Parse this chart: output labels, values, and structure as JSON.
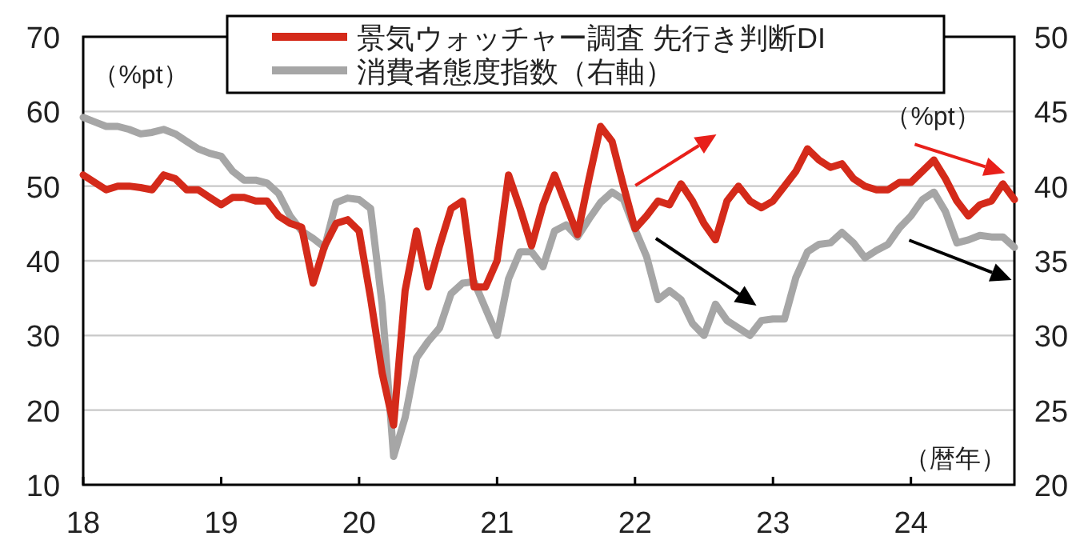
{
  "chart_data": {
    "type": "line",
    "x": [
      "2018-01",
      "2018-02",
      "2018-03",
      "2018-04",
      "2018-05",
      "2018-06",
      "2018-07",
      "2018-08",
      "2018-09",
      "2018-10",
      "2018-11",
      "2018-12",
      "2019-01",
      "2019-02",
      "2019-03",
      "2019-04",
      "2019-05",
      "2019-06",
      "2019-07",
      "2019-08",
      "2019-09",
      "2019-10",
      "2019-11",
      "2019-12",
      "2020-01",
      "2020-02",
      "2020-03",
      "2020-04",
      "2020-05",
      "2020-06",
      "2020-07",
      "2020-08",
      "2020-09",
      "2020-10",
      "2020-11",
      "2020-12",
      "2021-01",
      "2021-02",
      "2021-03",
      "2021-04",
      "2021-05",
      "2021-06",
      "2021-07",
      "2021-08",
      "2021-09",
      "2021-10",
      "2021-11",
      "2021-12",
      "2022-01",
      "2022-02",
      "2022-03",
      "2022-04",
      "2022-05",
      "2022-06",
      "2022-07",
      "2022-08",
      "2022-09",
      "2022-10",
      "2022-11",
      "2022-12",
      "2023-01",
      "2023-02",
      "2023-03",
      "2023-04",
      "2023-05",
      "2023-06",
      "2023-07",
      "2023-08",
      "2023-09",
      "2023-10",
      "2023-11",
      "2023-12",
      "2024-01",
      "2024-02",
      "2024-03",
      "2024-04",
      "2024-05",
      "2024-06",
      "2024-07",
      "2024-08",
      "2024-09",
      "2024-10"
    ],
    "series": [
      {
        "name": "景気ウォッチャー調査 先行き判断DI",
        "color": "#d42a1a",
        "values": [
          51.5,
          50.5,
          49.5,
          50,
          50,
          49.8,
          49.5,
          51.5,
          51,
          49.5,
          49.5,
          48.5,
          47.5,
          48.5,
          48.5,
          48,
          48,
          46,
          45,
          44.5,
          37,
          42,
          45,
          45.5,
          44,
          35,
          25,
          18,
          36,
          44,
          36.5,
          42,
          47,
          48,
          36.5,
          36.5,
          40,
          51.5,
          47,
          42,
          47.5,
          51.5,
          47.5,
          43.5,
          51,
          58,
          56,
          50,
          44.3,
          46,
          48,
          47.5,
          50.3,
          48,
          45,
          42.8,
          48,
          50,
          48,
          47.1,
          48,
          50,
          52,
          55,
          53.5,
          52.5,
          53,
          51,
          50,
          49.5,
          49.5,
          50.5,
          50.5,
          52,
          53.5,
          51,
          48,
          46,
          47.5,
          48,
          50.3,
          48.2
        ]
      },
      {
        "name": "消費者態度指数（右軸）",
        "color": "#a6a6a6",
        "axis": "y2",
        "values": [
          44.6,
          44.3,
          44,
          44,
          43.8,
          43.5,
          43.6,
          43.8,
          43.5,
          43,
          42.5,
          42.2,
          42,
          41,
          40.4,
          40.4,
          40.2,
          39.5,
          38,
          37,
          36.5,
          35.9,
          38.9,
          39.2,
          39.1,
          38.5,
          32.1,
          21.9,
          24.5,
          28.5,
          29.6,
          30.5,
          32.8,
          33.5,
          33.6,
          31.8,
          30,
          33.8,
          35.6,
          35.6,
          34.6,
          37,
          37.4,
          36.6,
          37.8,
          38.9,
          39.6,
          39.1,
          37.1,
          35.3,
          32.4,
          33,
          32.4,
          30.8,
          30,
          32.1,
          31,
          30.5,
          30,
          31,
          31.1,
          31.1,
          33.9,
          35.6,
          36.1,
          36.2,
          36.9,
          36.2,
          35.2,
          35.7,
          36.1,
          37.2,
          38,
          39.1,
          39.6,
          38.3,
          36.2,
          36.4,
          36.7,
          36.6,
          36.6,
          35.9
        ]
      }
    ],
    "xlim": [
      "2018-01",
      "2024-10"
    ],
    "xticks": [
      {
        "value": "2018",
        "label": "18"
      },
      {
        "value": "2019",
        "label": "19"
      },
      {
        "value": "2020",
        "label": "20"
      },
      {
        "value": "2021",
        "label": "21"
      },
      {
        "value": "2022",
        "label": "22"
      },
      {
        "value": "2023",
        "label": "23"
      },
      {
        "value": "2024",
        "label": "24"
      }
    ],
    "ylim": [
      10,
      70
    ],
    "yticks": [
      10,
      20,
      30,
      40,
      50,
      60,
      70
    ],
    "y2lim": [
      20,
      50
    ],
    "y2ticks": [
      20,
      25,
      30,
      35,
      40,
      45,
      50
    ],
    "ylabel": "（%pt）",
    "y2label": "（%pt）",
    "xlabel": "（暦年）",
    "grid": "y",
    "legend": "top",
    "line_style": "solid"
  }
}
